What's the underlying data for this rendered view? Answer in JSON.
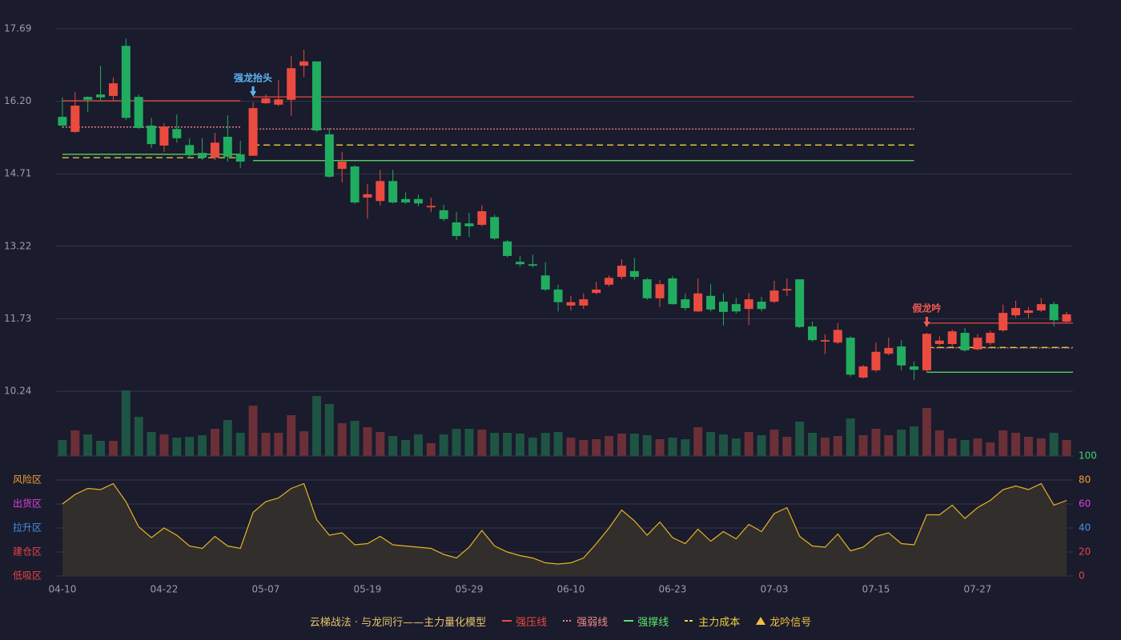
{
  "chart_data": [
    {
      "type": "candlestick",
      "x": [
        "04-10",
        null,
        null,
        null,
        null,
        null,
        null,
        null,
        "04-22",
        null,
        null,
        null,
        null,
        null,
        null,
        null,
        "05-07",
        null,
        null,
        null,
        null,
        null,
        null,
        null,
        "05-19",
        null,
        null,
        null,
        null,
        null,
        null,
        null,
        "05-29",
        null,
        null,
        null,
        null,
        null,
        null,
        null,
        "06-10",
        null,
        null,
        null,
        null,
        null,
        null,
        null,
        "06-23",
        null,
        null,
        null,
        null,
        null,
        null,
        null,
        "07-03",
        null,
        null,
        null,
        null,
        null,
        null,
        null,
        "07-15",
        null,
        null,
        null,
        null,
        null,
        null,
        null,
        "07-27",
        null,
        null,
        null,
        null,
        null,
        null,
        null
      ],
      "open": [
        15.88,
        15.57,
        16.29,
        16.34,
        16.31,
        17.34,
        16.29,
        15.7,
        15.29,
        15.63,
        15.3,
        15.14,
        15.04,
        15.47,
        15.11,
        15.08,
        16.16,
        16.13,
        16.23,
        16.93,
        17.02,
        15.52,
        14.81,
        14.86,
        14.22,
        14.15,
        14.56,
        14.19,
        14.19,
        14.02,
        13.96,
        13.71,
        13.69,
        13.66,
        13.82,
        13.32,
        12.9,
        12.85,
        12.62,
        12.33,
        12.0,
        12.0,
        12.26,
        12.43,
        12.59,
        12.71,
        12.54,
        12.15,
        12.56,
        12.13,
        11.88,
        12.2,
        12.08,
        12.03,
        11.93,
        12.08,
        12.08,
        12.31,
        12.54,
        11.57,
        11.26,
        11.24,
        11.34,
        10.52,
        10.67,
        11.01,
        11.16,
        10.75,
        10.67,
        11.21,
        11.21,
        11.44,
        11.1,
        11.23,
        11.49,
        11.8,
        11.85,
        11.9,
        12.03,
        11.67
      ],
      "close": [
        15.7,
        16.11,
        16.23,
        16.28,
        16.57,
        15.86,
        15.65,
        15.32,
        15.68,
        15.44,
        15.09,
        15.04,
        15.35,
        15.06,
        14.96,
        16.06,
        16.26,
        16.24,
        16.88,
        17.02,
        15.6,
        14.65,
        14.96,
        14.12,
        14.29,
        14.56,
        14.12,
        14.12,
        14.1,
        14.05,
        13.78,
        13.43,
        13.63,
        13.94,
        13.38,
        13.02,
        12.85,
        12.82,
        12.33,
        12.07,
        12.07,
        12.13,
        12.33,
        12.57,
        12.82,
        12.59,
        12.15,
        12.44,
        12.03,
        11.95,
        12.25,
        11.92,
        11.87,
        11.88,
        12.13,
        11.93,
        12.31,
        12.34,
        11.56,
        11.29,
        11.29,
        11.5,
        10.58,
        10.75,
        11.05,
        11.13,
        10.77,
        10.68,
        11.42,
        11.28,
        11.47,
        11.08,
        11.34,
        11.44,
        11.85,
        11.95,
        11.9,
        12.03,
        11.7,
        11.82
      ],
      "high": [
        16.28,
        16.39,
        16.3,
        16.93,
        16.69,
        17.49,
        16.34,
        15.86,
        15.75,
        15.93,
        15.44,
        15.44,
        15.55,
        15.91,
        15.39,
        16.18,
        16.34,
        16.64,
        17.13,
        17.26,
        17.02,
        15.65,
        15.16,
        14.89,
        14.5,
        14.79,
        14.79,
        14.33,
        14.28,
        14.22,
        14.07,
        13.92,
        13.91,
        14.06,
        13.87,
        13.35,
        13.02,
        13.05,
        12.89,
        12.43,
        12.2,
        12.25,
        12.49,
        12.62,
        12.95,
        12.98,
        12.57,
        12.53,
        12.61,
        12.25,
        12.56,
        12.44,
        12.25,
        12.16,
        12.26,
        12.18,
        12.51,
        12.56,
        12.54,
        11.67,
        11.41,
        11.64,
        11.37,
        10.78,
        11.24,
        11.34,
        11.29,
        10.85,
        11.44,
        11.37,
        11.51,
        11.54,
        11.41,
        11.49,
        12.02,
        12.1,
        11.97,
        12.15,
        12.08,
        11.87
      ],
      "low": [
        15.65,
        15.55,
        15.98,
        16.2,
        16.21,
        15.81,
        15.63,
        15.24,
        15.16,
        15.35,
        15.02,
        14.99,
        14.99,
        14.96,
        14.83,
        15.08,
        16.14,
        16.1,
        15.9,
        16.7,
        15.57,
        14.63,
        14.53,
        14.09,
        13.79,
        14.06,
        14.1,
        14.09,
        14.04,
        13.92,
        13.74,
        13.35,
        13.41,
        13.63,
        13.35,
        12.99,
        12.8,
        12.79,
        12.3,
        11.88,
        11.9,
        11.93,
        12.23,
        12.39,
        12.54,
        12.53,
        12.12,
        11.97,
        12.02,
        11.9,
        11.87,
        11.88,
        11.59,
        11.83,
        11.6,
        11.88,
        12.05,
        12.2,
        11.54,
        11.26,
        11.0,
        11.21,
        10.54,
        10.5,
        10.63,
        10.98,
        10.67,
        10.47,
        10.63,
        11.18,
        11.16,
        11.05,
        11.08,
        11.19,
        11.46,
        11.75,
        11.74,
        11.87,
        11.57,
        11.64
      ],
      "volume": [
        20,
        32,
        27,
        19,
        19,
        82,
        49,
        30,
        27,
        23,
        24,
        26,
        34,
        45,
        29,
        63,
        29,
        29,
        51,
        31,
        75,
        65,
        41,
        44,
        36,
        30,
        25,
        20,
        27,
        16,
        27,
        34,
        34,
        33,
        29,
        29,
        28,
        23,
        29,
        30,
        23,
        20,
        21,
        25,
        28,
        28,
        26,
        21,
        23,
        21,
        36,
        30,
        27,
        22,
        30,
        26,
        33,
        24,
        43,
        29,
        23,
        25,
        47,
        26,
        34,
        26,
        33,
        37,
        60,
        32,
        22,
        20,
        22,
        17,
        32,
        29,
        24,
        22,
        29,
        20
      ],
      "volume_ylim": [
        0,
        82
      ],
      "up_color": "#eb4b3f",
      "down_color": "#21ad5f",
      "volume_up_color": "#6b2f38",
      "volume_down_color": "#1e5443",
      "ylim": [
        10.24,
        17.69
      ],
      "yticks": [
        10.24,
        11.73,
        13.22,
        14.71,
        {
          "value": 16.2,
          "label": "16.20"
        },
        17.69
      ],
      "grid": true,
      "levels": [
        {
          "name": "强压线",
          "color": "#eb4b3f",
          "style": "solid",
          "values": [
            16.21,
            16.21,
            16.21,
            16.21,
            16.21,
            16.21,
            16.21,
            16.21,
            16.21,
            16.21,
            16.21,
            16.21,
            16.21,
            16.21,
            16.21,
            16.29,
            16.29,
            16.29,
            16.29,
            16.29,
            16.29,
            16.29,
            16.29,
            16.29,
            16.29,
            16.29,
            16.29,
            16.29,
            16.29,
            16.29,
            16.29,
            16.29,
            16.29,
            16.29,
            16.29,
            16.29,
            16.29,
            16.29,
            16.29,
            16.29,
            16.29,
            16.29,
            16.29,
            16.29,
            16.29,
            16.29,
            16.29,
            16.29,
            16.29,
            16.29,
            16.29,
            16.29,
            16.29,
            16.29,
            16.29,
            16.29,
            16.29,
            16.29,
            16.29,
            16.29,
            16.29,
            16.29,
            16.29,
            16.29,
            16.29,
            16.29,
            16.29,
            16.29,
            11.64,
            11.64,
            11.64,
            11.64,
            11.64,
            11.64,
            11.64,
            11.64,
            11.64,
            11.64,
            11.64,
            11.64
          ]
        },
        {
          "name": "强弱线",
          "color": "#f08a8a",
          "style": "dotted",
          "values": [
            15.67,
            15.67,
            15.67,
            15.67,
            15.67,
            15.67,
            15.67,
            15.67,
            15.67,
            15.67,
            15.67,
            15.67,
            15.67,
            15.67,
            15.67,
            15.63,
            15.63,
            15.63,
            15.63,
            15.63,
            15.63,
            15.63,
            15.63,
            15.63,
            15.63,
            15.63,
            15.63,
            15.63,
            15.63,
            15.63,
            15.63,
            15.63,
            15.63,
            15.63,
            15.63,
            15.63,
            15.63,
            15.63,
            15.63,
            15.63,
            15.63,
            15.63,
            15.63,
            15.63,
            15.63,
            15.63,
            15.63,
            15.63,
            15.63,
            15.63,
            15.63,
            15.63,
            15.63,
            15.63,
            15.63,
            15.63,
            15.63,
            15.63,
            15.63,
            15.63,
            15.63,
            15.63,
            15.63,
            15.63,
            15.63,
            15.63,
            15.63,
            15.63,
            11.13,
            11.13,
            11.13,
            11.13,
            11.13,
            11.13,
            11.13,
            11.13,
            11.13,
            11.13,
            11.13,
            11.13
          ]
        },
        {
          "name": "强撑线",
          "color": "#5be36a",
          "style": "solid",
          "values": [
            15.11,
            15.11,
            15.11,
            15.11,
            15.11,
            15.11,
            15.11,
            15.11,
            15.11,
            15.11,
            15.11,
            15.11,
            15.11,
            15.11,
            15.11,
            14.98,
            14.98,
            14.98,
            14.98,
            14.98,
            14.98,
            14.98,
            14.98,
            14.98,
            14.98,
            14.98,
            14.98,
            14.98,
            14.98,
            14.98,
            14.98,
            14.98,
            14.98,
            14.98,
            14.98,
            14.98,
            14.98,
            14.98,
            14.98,
            14.98,
            14.98,
            14.98,
            14.98,
            14.98,
            14.98,
            14.98,
            14.98,
            14.98,
            14.98,
            14.98,
            14.98,
            14.98,
            14.98,
            14.98,
            14.98,
            14.98,
            14.98,
            14.98,
            14.98,
            14.98,
            14.98,
            14.98,
            14.98,
            14.98,
            14.98,
            14.98,
            14.98,
            14.98,
            10.63,
            10.63,
            10.63,
            10.63,
            10.63,
            10.63,
            10.63,
            10.63,
            10.63,
            10.63,
            10.63,
            10.63
          ]
        },
        {
          "name": "主力成本",
          "color": "#f0d23a",
          "style": "dashed",
          "values": [
            15.04,
            15.04,
            15.04,
            15.04,
            15.04,
            15.04,
            15.04,
            15.04,
            15.04,
            15.04,
            15.04,
            15.04,
            15.04,
            15.04,
            15.04,
            15.3,
            15.3,
            15.3,
            15.3,
            15.3,
            15.3,
            15.3,
            15.3,
            15.3,
            15.3,
            15.3,
            15.3,
            15.3,
            15.3,
            15.3,
            15.3,
            15.3,
            15.3,
            15.3,
            15.3,
            15.3,
            15.3,
            15.3,
            15.3,
            15.3,
            15.3,
            15.3,
            15.3,
            15.3,
            15.3,
            15.3,
            15.3,
            15.3,
            15.3,
            15.3,
            15.3,
            15.3,
            15.3,
            15.3,
            15.3,
            15.3,
            15.3,
            15.3,
            15.3,
            15.3,
            15.3,
            15.3,
            15.3,
            15.3,
            15.3,
            15.3,
            15.3,
            15.3,
            11.14,
            11.14,
            11.14,
            11.14,
            11.14,
            11.14,
            11.14,
            11.14,
            11.14,
            11.14,
            11.14,
            11.14
          ]
        }
      ],
      "signals": [
        null,
        null,
        null,
        null,
        null,
        null,
        null,
        null,
        null,
        null,
        null,
        null,
        null,
        null,
        null,
        {
          "text": "强龙抬头",
          "color": "#5ab6f5"
        },
        null,
        null,
        null,
        null,
        null,
        null,
        null,
        null,
        null,
        null,
        null,
        null,
        null,
        null,
        null,
        null,
        null,
        null,
        null,
        null,
        null,
        null,
        null,
        null,
        null,
        null,
        null,
        null,
        null,
        null,
        null,
        null,
        null,
        null,
        null,
        null,
        null,
        null,
        null,
        null,
        null,
        null,
        null,
        null,
        null,
        null,
        null,
        null,
        null,
        null,
        null,
        null,
        {
          "text": "假龙吟",
          "color": "#f05a50"
        },
        null,
        null,
        null,
        null,
        null,
        null,
        null,
        null,
        null,
        null,
        null
      ],
      "legend_title": "云梯战法 · 与龙同行——主力量化模型",
      "legend_title_color": "#e8c36a",
      "signal_legend": "龙吟信号",
      "signal_legend_color": "#f0c040"
    },
    {
      "type": "area",
      "values": [
        60,
        68,
        73,
        72,
        77,
        62,
        41,
        32,
        40,
        34,
        25,
        23,
        33,
        25,
        23,
        53,
        62,
        65,
        73,
        77,
        47,
        34,
        36,
        26,
        27,
        33,
        26,
        25,
        24,
        23,
        18,
        15,
        24,
        38,
        25,
        20,
        17,
        15,
        11,
        10,
        11,
        15,
        27,
        40,
        55,
        46,
        34,
        45,
        32,
        27,
        39,
        29,
        37,
        31,
        43,
        37,
        52,
        57,
        33,
        25,
        24,
        35,
        21,
        24,
        33,
        36,
        27,
        26,
        51,
        51,
        59,
        48,
        57,
        63,
        72,
        75,
        72,
        77,
        59,
        63
      ],
      "color": "#e6b422",
      "fill": "#322e2c",
      "ylim": [
        0,
        100
      ],
      "yticks": [
        0,
        20,
        40,
        60,
        80,
        100
      ],
      "ytick_colors": [
        "#e84545",
        "#e84545",
        "#4a90e2",
        "#e040e0",
        "#f0a030",
        "#3fd46a"
      ],
      "zone_labels": [
        {
          "value": 0,
          "label": "低吸区",
          "color": "#e84545"
        },
        {
          "value": 20,
          "label": "建仓区",
          "color": "#e84545"
        },
        {
          "value": 40,
          "label": "拉升区",
          "color": "#4a90e2"
        },
        {
          "value": 60,
          "label": "出货区",
          "color": "#e040e0"
        },
        {
          "value": 80,
          "label": "风险区",
          "color": "#f0a030"
        }
      ],
      "grid": true
    }
  ]
}
